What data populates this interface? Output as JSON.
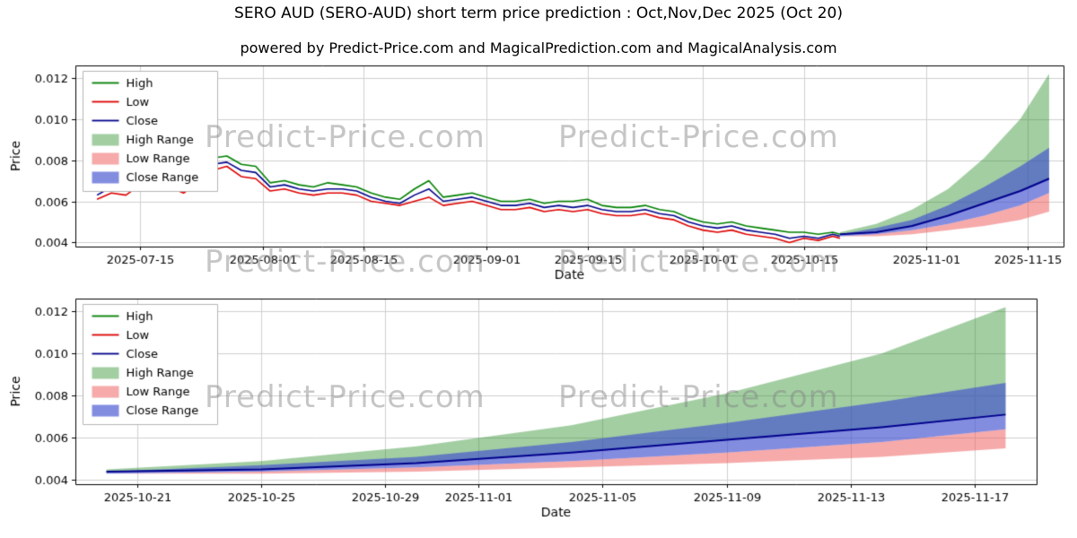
{
  "watermark": {
    "text": "Predict-Price.com"
  },
  "chart_data": {
    "type": "line",
    "title": "SERO AUD (SERO-AUD) short term price prediction : Oct,Nov,Dec 2025 (Oct 20)",
    "subtitle": "powered by Predict-Price.com and MagicalPrediction.com and MagicalAnalysis.com",
    "xlabel": "Date",
    "ylabel": "Price",
    "grid": true,
    "legend_position": "upper left",
    "colors": {
      "high": "#008000",
      "low": "#dd0000",
      "close": "#00008b",
      "high_range": "rgba(34,139,34,0.42)",
      "low_range": "rgba(238,85,85,0.5)",
      "close_range": "rgba(64,80,208,0.65)",
      "grid": "#cfcfcf",
      "frame": "#000000"
    },
    "legend": [
      {
        "label": "High",
        "kind": "line",
        "color": "#008000"
      },
      {
        "label": "Low",
        "kind": "line",
        "color": "#dd0000"
      },
      {
        "label": "Close",
        "kind": "line",
        "color": "#00008b"
      },
      {
        "label": "High Range",
        "kind": "patch",
        "color": "rgba(34,139,34,0.42)"
      },
      {
        "label": "Low Range",
        "kind": "patch",
        "color": "rgba(238,85,85,0.5)"
      },
      {
        "label": "Close Range",
        "kind": "patch",
        "color": "rgba(64,80,208,0.65)"
      }
    ],
    "history": {
      "dates": [
        "2025-07-09",
        "2025-07-11",
        "2025-07-13",
        "2025-07-15",
        "2025-07-17",
        "2025-07-19",
        "2025-07-21",
        "2025-07-23",
        "2025-07-25",
        "2025-07-27",
        "2025-07-29",
        "2025-07-31",
        "2025-08-02",
        "2025-08-04",
        "2025-08-06",
        "2025-08-08",
        "2025-08-10",
        "2025-08-12",
        "2025-08-14",
        "2025-08-16",
        "2025-08-18",
        "2025-08-20",
        "2025-08-22",
        "2025-08-24",
        "2025-08-26",
        "2025-08-28",
        "2025-08-30",
        "2025-09-01",
        "2025-09-03",
        "2025-09-05",
        "2025-09-07",
        "2025-09-09",
        "2025-09-11",
        "2025-09-13",
        "2025-09-15",
        "2025-09-17",
        "2025-09-19",
        "2025-09-21",
        "2025-09-23",
        "2025-09-25",
        "2025-09-27",
        "2025-09-29",
        "2025-10-01",
        "2025-10-03",
        "2025-10-05",
        "2025-10-07",
        "2025-10-09",
        "2025-10-11",
        "2025-10-13",
        "2025-10-15",
        "2025-10-17",
        "2025-10-19",
        "2025-10-20"
      ],
      "high": [
        0.0066,
        0.007,
        0.0068,
        0.0073,
        0.0071,
        0.0072,
        0.0069,
        0.0075,
        0.0081,
        0.0082,
        0.0078,
        0.0077,
        0.0069,
        0.007,
        0.0068,
        0.0067,
        0.0069,
        0.0068,
        0.0067,
        0.0064,
        0.0062,
        0.0061,
        0.0066,
        0.007,
        0.0062,
        0.0063,
        0.0064,
        0.0062,
        0.006,
        0.006,
        0.0061,
        0.0059,
        0.006,
        0.006,
        0.0061,
        0.0058,
        0.0057,
        0.0057,
        0.0058,
        0.0056,
        0.0055,
        0.0052,
        0.005,
        0.0049,
        0.005,
        0.0048,
        0.0047,
        0.0046,
        0.0045,
        0.0045,
        0.0044,
        0.0045,
        0.0044
      ],
      "low": [
        0.0061,
        0.0064,
        0.0063,
        0.0068,
        0.0066,
        0.0067,
        0.0064,
        0.0069,
        0.0075,
        0.0077,
        0.0072,
        0.0071,
        0.0065,
        0.0066,
        0.0064,
        0.0063,
        0.0064,
        0.0064,
        0.0063,
        0.006,
        0.0059,
        0.0058,
        0.006,
        0.0062,
        0.0058,
        0.0059,
        0.006,
        0.0058,
        0.0056,
        0.0056,
        0.0057,
        0.0055,
        0.0056,
        0.0055,
        0.0056,
        0.0054,
        0.0053,
        0.0053,
        0.0054,
        0.0052,
        0.0051,
        0.0048,
        0.0046,
        0.0045,
        0.0046,
        0.0044,
        0.0043,
        0.0042,
        0.004,
        0.0042,
        0.0041,
        0.0043,
        0.0042
      ],
      "close": [
        0.0063,
        0.0067,
        0.0065,
        0.007,
        0.0068,
        0.0069,
        0.0066,
        0.0072,
        0.0078,
        0.0079,
        0.0075,
        0.0074,
        0.0067,
        0.0068,
        0.0066,
        0.0065,
        0.0066,
        0.0066,
        0.0065,
        0.0062,
        0.006,
        0.0059,
        0.0063,
        0.0066,
        0.006,
        0.0061,
        0.0062,
        0.006,
        0.0058,
        0.0058,
        0.0059,
        0.0057,
        0.0058,
        0.0057,
        0.0058,
        0.0056,
        0.0055,
        0.0055,
        0.0056,
        0.0054,
        0.0053,
        0.005,
        0.0048,
        0.0047,
        0.0048,
        0.0046,
        0.0045,
        0.0044,
        0.0042,
        0.0043,
        0.0042,
        0.0044,
        0.0043
      ]
    },
    "prediction": {
      "dates": [
        "2025-10-20",
        "2025-10-25",
        "2025-10-30",
        "2025-11-04",
        "2025-11-09",
        "2025-11-14",
        "2025-11-18"
      ],
      "high_top": [
        0.0045,
        0.0049,
        0.0056,
        0.0066,
        0.0081,
        0.01,
        0.0122
      ],
      "close_top": [
        0.0044,
        0.0047,
        0.0051,
        0.0058,
        0.0067,
        0.0077,
        0.0086
      ],
      "close": [
        0.0044,
        0.0045,
        0.0048,
        0.0053,
        0.0059,
        0.0065,
        0.0071
      ],
      "close_bot": [
        0.0043,
        0.0044,
        0.0046,
        0.0049,
        0.0053,
        0.0058,
        0.0064
      ],
      "low_top": [
        0.0043,
        0.0044,
        0.0046,
        0.0048,
        0.0052,
        0.0057,
        0.0062
      ],
      "low_bot": [
        0.0043,
        0.0043,
        0.0044,
        0.0046,
        0.0048,
        0.0051,
        0.0055
      ]
    },
    "charts": [
      {
        "name": "history-and-forecast",
        "show_history": true,
        "xlim": [
          "2025-07-06",
          "2025-11-20"
        ],
        "xticks": [
          "2025-07-15",
          "2025-08-01",
          "2025-08-15",
          "2025-09-01",
          "2025-09-15",
          "2025-10-01",
          "2025-10-15",
          "2025-11-01",
          "2025-11-15"
        ],
        "ylim": [
          0.0038,
          0.0126
        ],
        "yticks": [
          "0.004",
          "0.006",
          "0.008",
          "0.010",
          "0.012"
        ]
      },
      {
        "name": "forecast-zoom",
        "show_history": false,
        "xlim": [
          "2025-10-19",
          "2025-11-19"
        ],
        "xticks": [
          "2025-10-21",
          "2025-10-25",
          "2025-10-29",
          "2025-11-01",
          "2025-11-05",
          "2025-11-09",
          "2025-11-13",
          "2025-11-17"
        ],
        "ylim": [
          0.0038,
          0.0126
        ],
        "yticks": [
          "0.004",
          "0.006",
          "0.008",
          "0.010",
          "0.012"
        ]
      }
    ]
  }
}
